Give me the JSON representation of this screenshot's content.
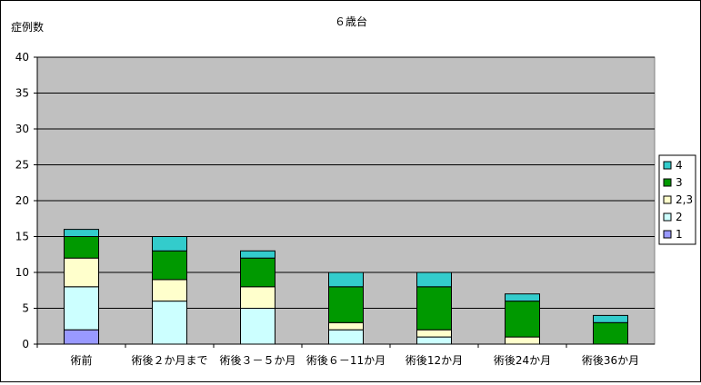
{
  "chart_data": {
    "type": "bar",
    "stacked": true,
    "title": "６歳台",
    "ylabel": "症例数",
    "xlabel": "",
    "ylim": [
      0,
      40
    ],
    "yticks": [
      0,
      5,
      10,
      15,
      20,
      25,
      30,
      35,
      40
    ],
    "grid": true,
    "legend_position": "right",
    "categories": [
      "術前",
      "術後２か月まで",
      "術後３－５か月",
      "術後６－11か月",
      "術後12か月",
      "術後24か月",
      "術後36か月"
    ],
    "series": [
      {
        "name": "1",
        "color": "#9999ff",
        "values": [
          2,
          0,
          0,
          0,
          0,
          0,
          0
        ]
      },
      {
        "name": "2",
        "color": "#ccffff",
        "values": [
          6,
          6,
          5,
          2,
          1,
          0,
          0
        ]
      },
      {
        "name": "2,3",
        "color": "#ffffcc",
        "values": [
          4,
          3,
          3,
          1,
          1,
          1,
          0
        ]
      },
      {
        "name": "3",
        "color": "#009900",
        "values": [
          3,
          4,
          4,
          5,
          6,
          5,
          3
        ]
      },
      {
        "name": "4",
        "color": "#33cccc",
        "values": [
          1,
          2,
          1,
          2,
          2,
          1,
          1
        ]
      }
    ]
  }
}
